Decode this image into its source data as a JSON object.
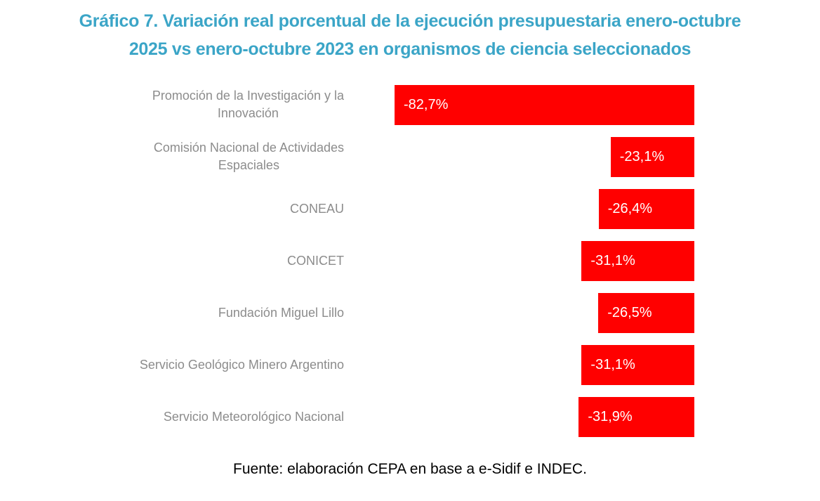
{
  "chart_data": {
    "type": "bar",
    "orientation": "horizontal",
    "title": "Gráfico 7. Variación real porcentual de la ejecución presupuestaria enero-octubre\n2025 vs enero-octubre 2023 en organismos de ciencia seleccionados",
    "categories": [
      "Promoción de la Investigación y la\nInnovación",
      "Comisión Nacional de Actividades\nEspaciales",
      "CONEAU",
      "CONICET",
      "Fundación Miguel Lillo",
      "Servicio Geológico Minero Argentino",
      "Servicio Meteorológico Nacional"
    ],
    "values": [
      -82.7,
      -23.1,
      -26.4,
      -31.1,
      -26.5,
      -31.1,
      -31.9
    ],
    "value_labels": [
      "-82,7%",
      "-23,1%",
      "-26,4%",
      "-31,1%",
      "-26,5%",
      "-31,1%",
      "-31,9%"
    ],
    "xlim": [
      -82.7,
      0
    ],
    "bar_anchor": "right",
    "value_label_position": "inside-start",
    "grid": false,
    "legend": false,
    "source": "Fuente: elaboración CEPA en base a e-Sidif e INDEC.",
    "colors": {
      "bar": "#FF0000",
      "title": "#3BA5C7",
      "category_label": "#8C8C8C",
      "value_label": "#FFFFFF",
      "source_text": "#000000",
      "background": "#FFFFFF"
    }
  }
}
